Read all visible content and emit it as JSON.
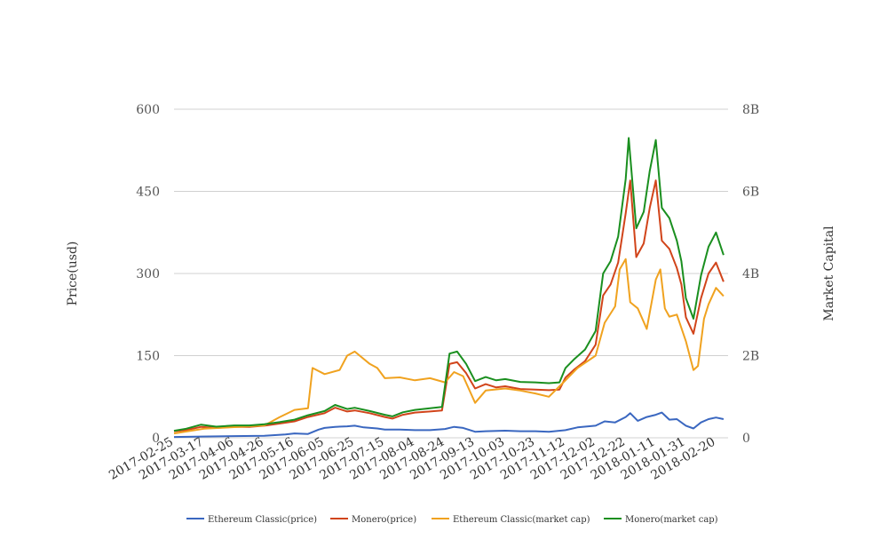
{
  "chart_data": {
    "type": "line",
    "title": "",
    "ylabel_left": "Price(usd)",
    "ylabel_right": "Market Capital",
    "ylim_left": [
      0,
      600
    ],
    "ylim_right": [
      0,
      8000000000
    ],
    "y_ticks_left": [
      "0",
      "150",
      "300",
      "450",
      "600"
    ],
    "y_ticks_right": [
      "0",
      "2B",
      "4B",
      "6B",
      "8B"
    ],
    "x_start": "2017-02-25",
    "x_end": "2018-02-28",
    "x_ticks": [
      "2017-02-25",
      "2017-03-17",
      "2017-04-06",
      "2017-04-26",
      "2017-05-16",
      "2017-06-05",
      "2017-06-25",
      "2017-07-15",
      "2017-08-04",
      "2017-08-24",
      "2017-09-13",
      "2017-10-03",
      "2017-10-23",
      "2017-11-12",
      "2017-12-02",
      "2017-12-22",
      "2018-01-11",
      "2018-01-31",
      "2018-02-20"
    ],
    "grid": true,
    "legend_position": "bottom",
    "series": [
      {
        "name": "Ethereum Classic(price)",
        "axis": "left",
        "color": "#3a67c0",
        "points": [
          [
            "2017-02-25",
            1.5
          ],
          [
            "2017-03-15",
            2.2
          ],
          [
            "2017-04-06",
            3
          ],
          [
            "2017-04-26",
            3.8
          ],
          [
            "2017-05-10",
            6
          ],
          [
            "2017-05-16",
            8
          ],
          [
            "2017-05-25",
            7
          ],
          [
            "2017-06-01",
            15
          ],
          [
            "2017-06-05",
            18
          ],
          [
            "2017-06-12",
            20
          ],
          [
            "2017-06-20",
            21
          ],
          [
            "2017-06-25",
            22
          ],
          [
            "2017-07-01",
            19
          ],
          [
            "2017-07-10",
            17
          ],
          [
            "2017-07-15",
            15
          ],
          [
            "2017-07-25",
            15
          ],
          [
            "2017-08-04",
            14
          ],
          [
            "2017-08-14",
            14
          ],
          [
            "2017-08-24",
            16
          ],
          [
            "2017-08-30",
            20
          ],
          [
            "2017-09-05",
            18
          ],
          [
            "2017-09-13",
            11
          ],
          [
            "2017-09-20",
            12
          ],
          [
            "2017-10-03",
            13
          ],
          [
            "2017-10-13",
            12
          ],
          [
            "2017-10-23",
            12
          ],
          [
            "2017-11-01",
            11
          ],
          [
            "2017-11-12",
            14
          ],
          [
            "2017-11-20",
            19
          ],
          [
            "2017-12-02",
            22
          ],
          [
            "2017-12-08",
            30
          ],
          [
            "2017-12-15",
            28
          ],
          [
            "2017-12-22",
            38
          ],
          [
            "2017-12-25",
            45
          ],
          [
            "2017-12-30",
            31
          ],
          [
            "2018-01-05",
            38
          ],
          [
            "2018-01-11",
            42
          ],
          [
            "2018-01-15",
            46
          ],
          [
            "2018-01-20",
            33
          ],
          [
            "2018-01-25",
            34
          ],
          [
            "2018-01-31",
            22
          ],
          [
            "2018-02-05",
            17
          ],
          [
            "2018-02-10",
            28
          ],
          [
            "2018-02-15",
            34
          ],
          [
            "2018-02-20",
            37
          ],
          [
            "2018-02-25",
            34
          ]
        ]
      },
      {
        "name": "Monero(price)",
        "axis": "left",
        "color": "#d1441a",
        "points": [
          [
            "2017-02-25",
            12
          ],
          [
            "2017-03-05",
            14
          ],
          [
            "2017-03-15",
            20
          ],
          [
            "2017-03-25",
            18
          ],
          [
            "2017-04-06",
            20
          ],
          [
            "2017-04-16",
            20
          ],
          [
            "2017-04-26",
            22
          ],
          [
            "2017-05-06",
            26
          ],
          [
            "2017-05-16",
            30
          ],
          [
            "2017-05-25",
            38
          ],
          [
            "2017-06-05",
            45
          ],
          [
            "2017-06-12",
            55
          ],
          [
            "2017-06-20",
            48
          ],
          [
            "2017-06-25",
            50
          ],
          [
            "2017-07-05",
            45
          ],
          [
            "2017-07-15",
            38
          ],
          [
            "2017-07-20",
            35
          ],
          [
            "2017-07-27",
            42
          ],
          [
            "2017-08-04",
            46
          ],
          [
            "2017-08-14",
            48
          ],
          [
            "2017-08-22",
            50
          ],
          [
            "2017-08-27",
            135
          ],
          [
            "2017-09-01",
            138
          ],
          [
            "2017-09-07",
            118
          ],
          [
            "2017-09-13",
            90
          ],
          [
            "2017-09-20",
            98
          ],
          [
            "2017-09-27",
            92
          ],
          [
            "2017-10-03",
            94
          ],
          [
            "2017-10-13",
            89
          ],
          [
            "2017-10-23",
            88
          ],
          [
            "2017-11-01",
            87
          ],
          [
            "2017-11-08",
            88
          ],
          [
            "2017-11-12",
            110
          ],
          [
            "2017-11-18",
            125
          ],
          [
            "2017-11-25",
            140
          ],
          [
            "2017-12-02",
            170
          ],
          [
            "2017-12-07",
            260
          ],
          [
            "2017-12-12",
            280
          ],
          [
            "2017-12-17",
            320
          ],
          [
            "2017-12-22",
            410
          ],
          [
            "2017-12-25",
            470
          ],
          [
            "2017-12-29",
            330
          ],
          [
            "2018-01-03",
            355
          ],
          [
            "2018-01-07",
            420
          ],
          [
            "2018-01-11",
            470
          ],
          [
            "2018-01-15",
            360
          ],
          [
            "2018-01-20",
            345
          ],
          [
            "2018-01-25",
            310
          ],
          [
            "2018-01-28",
            280
          ],
          [
            "2018-01-31",
            220
          ],
          [
            "2018-02-05",
            190
          ],
          [
            "2018-02-10",
            255
          ],
          [
            "2018-02-15",
            300
          ],
          [
            "2018-02-20",
            320
          ],
          [
            "2018-02-25",
            285
          ]
        ]
      },
      {
        "name": "Ethereum Classic(market cap)",
        "axis": "right",
        "color": "#f0a21f",
        "points": [
          [
            "2017-02-25",
            105000000
          ],
          [
            "2017-03-17",
            220000000
          ],
          [
            "2017-04-06",
            260000000
          ],
          [
            "2017-04-26",
            300000000
          ],
          [
            "2017-05-06",
            500000000
          ],
          [
            "2017-05-16",
            680000000
          ],
          [
            "2017-05-25",
            720000000
          ],
          [
            "2017-05-28",
            1700000000
          ],
          [
            "2017-06-05",
            1550000000
          ],
          [
            "2017-06-15",
            1650000000
          ],
          [
            "2017-06-20",
            2000000000
          ],
          [
            "2017-06-25",
            2100000000
          ],
          [
            "2017-07-05",
            1800000000
          ],
          [
            "2017-07-10",
            1700000000
          ],
          [
            "2017-07-15",
            1450000000
          ],
          [
            "2017-07-25",
            1470000000
          ],
          [
            "2017-08-04",
            1400000000
          ],
          [
            "2017-08-14",
            1450000000
          ],
          [
            "2017-08-24",
            1350000000
          ],
          [
            "2017-08-30",
            1600000000
          ],
          [
            "2017-09-05",
            1500000000
          ],
          [
            "2017-09-13",
            850000000
          ],
          [
            "2017-09-20",
            1150000000
          ],
          [
            "2017-10-03",
            1200000000
          ],
          [
            "2017-10-13",
            1150000000
          ],
          [
            "2017-10-23",
            1080000000
          ],
          [
            "2017-11-01",
            1000000000
          ],
          [
            "2017-11-12",
            1400000000
          ],
          [
            "2017-11-20",
            1700000000
          ],
          [
            "2017-12-02",
            2000000000
          ],
          [
            "2017-12-08",
            2800000000
          ],
          [
            "2017-12-15",
            3200000000
          ],
          [
            "2017-12-18",
            4100000000
          ],
          [
            "2017-12-22",
            4350000000
          ],
          [
            "2017-12-25",
            3300000000
          ],
          [
            "2017-12-30",
            3150000000
          ],
          [
            "2018-01-05",
            2650000000
          ],
          [
            "2018-01-11",
            3850000000
          ],
          [
            "2018-01-14",
            4100000000
          ],
          [
            "2018-01-17",
            3150000000
          ],
          [
            "2018-01-20",
            2950000000
          ],
          [
            "2018-01-25",
            3000000000
          ],
          [
            "2018-01-31",
            2350000000
          ],
          [
            "2018-02-05",
            1650000000
          ],
          [
            "2018-02-08",
            1750000000
          ],
          [
            "2018-02-12",
            2900000000
          ],
          [
            "2018-02-15",
            3250000000
          ],
          [
            "2018-02-20",
            3650000000
          ],
          [
            "2018-02-25",
            3450000000
          ]
        ]
      },
      {
        "name": "Monero(market cap)",
        "axis": "right",
        "color": "#1a8f1f",
        "points": [
          [
            "2017-02-25",
            170000000
          ],
          [
            "2017-03-05",
            220000000
          ],
          [
            "2017-03-15",
            320000000
          ],
          [
            "2017-03-25",
            270000000
          ],
          [
            "2017-04-06",
            300000000
          ],
          [
            "2017-04-16",
            300000000
          ],
          [
            "2017-04-26",
            330000000
          ],
          [
            "2017-05-06",
            380000000
          ],
          [
            "2017-05-16",
            440000000
          ],
          [
            "2017-05-25",
            550000000
          ],
          [
            "2017-06-05",
            650000000
          ],
          [
            "2017-06-12",
            800000000
          ],
          [
            "2017-06-20",
            700000000
          ],
          [
            "2017-06-25",
            730000000
          ],
          [
            "2017-07-05",
            650000000
          ],
          [
            "2017-07-15",
            560000000
          ],
          [
            "2017-07-20",
            520000000
          ],
          [
            "2017-07-27",
            620000000
          ],
          [
            "2017-08-04",
            680000000
          ],
          [
            "2017-08-14",
            720000000
          ],
          [
            "2017-08-22",
            750000000
          ],
          [
            "2017-08-27",
            2050000000
          ],
          [
            "2017-09-01",
            2100000000
          ],
          [
            "2017-09-07",
            1800000000
          ],
          [
            "2017-09-13",
            1380000000
          ],
          [
            "2017-09-20",
            1480000000
          ],
          [
            "2017-09-27",
            1400000000
          ],
          [
            "2017-10-03",
            1430000000
          ],
          [
            "2017-10-13",
            1360000000
          ],
          [
            "2017-10-23",
            1350000000
          ],
          [
            "2017-11-01",
            1330000000
          ],
          [
            "2017-11-08",
            1350000000
          ],
          [
            "2017-11-12",
            1700000000
          ],
          [
            "2017-11-18",
            1920000000
          ],
          [
            "2017-11-25",
            2150000000
          ],
          [
            "2017-12-02",
            2600000000
          ],
          [
            "2017-12-07",
            4000000000
          ],
          [
            "2017-12-12",
            4300000000
          ],
          [
            "2017-12-17",
            4900000000
          ],
          [
            "2017-12-22",
            6300000000
          ],
          [
            "2017-12-24",
            7300000000
          ],
          [
            "2017-12-29",
            5100000000
          ],
          [
            "2018-01-03",
            5500000000
          ],
          [
            "2018-01-07",
            6500000000
          ],
          [
            "2018-01-11",
            7250000000
          ],
          [
            "2018-01-15",
            5600000000
          ],
          [
            "2018-01-20",
            5350000000
          ],
          [
            "2018-01-25",
            4800000000
          ],
          [
            "2018-01-28",
            4300000000
          ],
          [
            "2018-01-31",
            3400000000
          ],
          [
            "2018-02-05",
            2900000000
          ],
          [
            "2018-02-10",
            3950000000
          ],
          [
            "2018-02-15",
            4650000000
          ],
          [
            "2018-02-20",
            5000000000
          ],
          [
            "2018-02-25",
            4450000000
          ]
        ]
      }
    ]
  }
}
